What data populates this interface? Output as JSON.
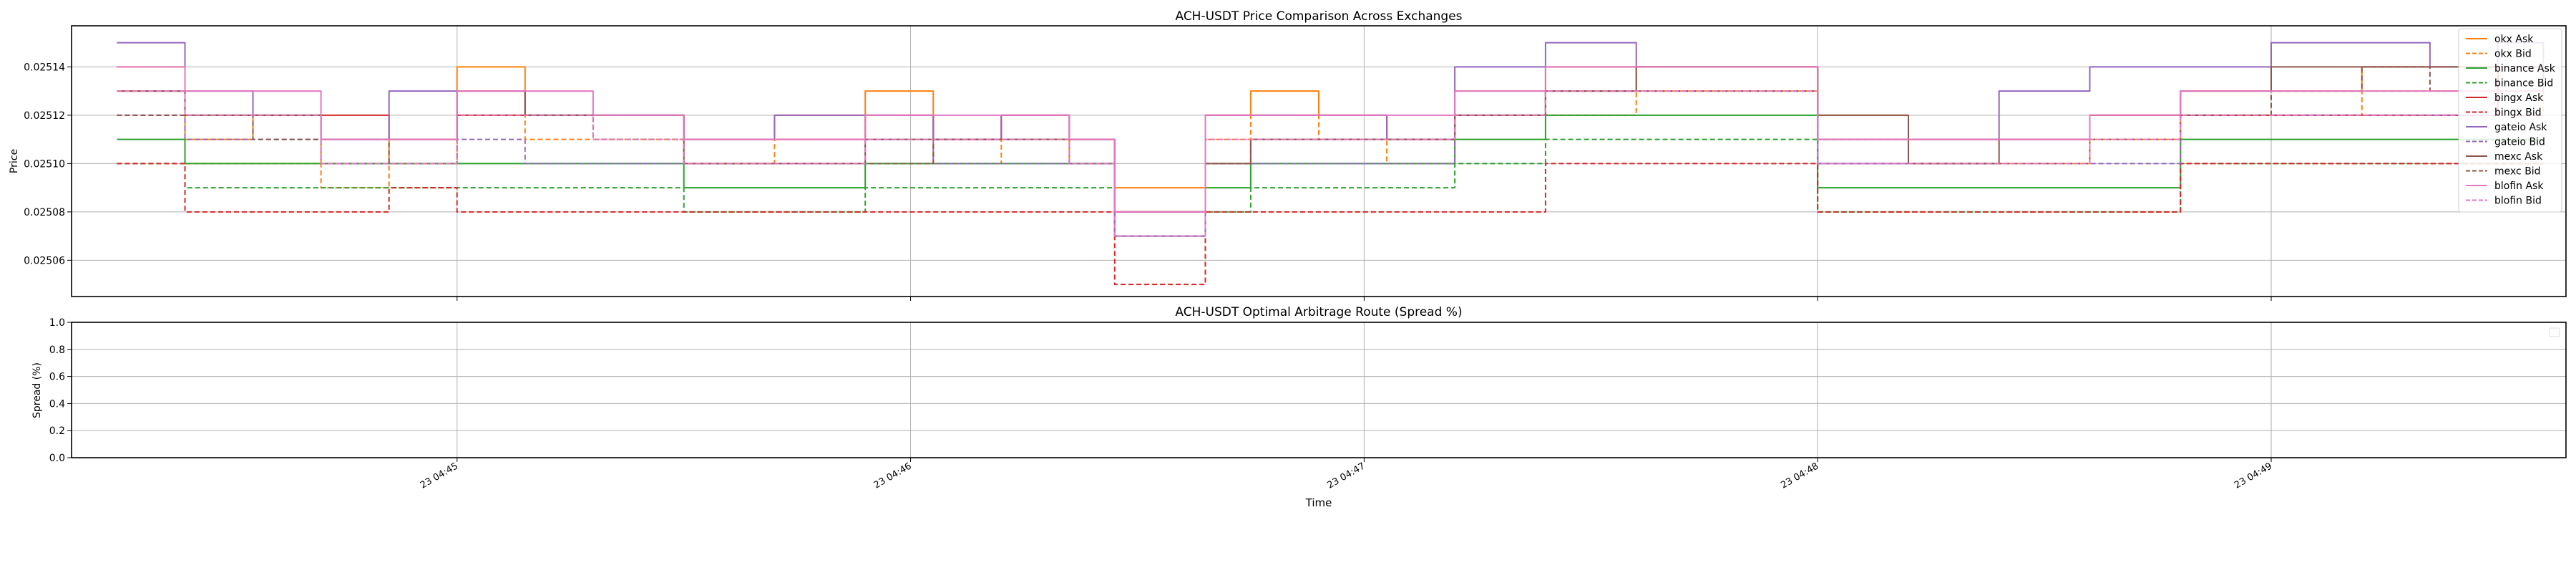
{
  "chart_data": [
    {
      "type": "line",
      "title": "ACH-USDT Price Comparison Across Exchanges",
      "xlabel": "",
      "ylabel": "Price",
      "ylim": [
        0.025045,
        0.025157
      ],
      "yticks": [
        "0.02506",
        "0.02508",
        "0.02510",
        "0.02512",
        "0.02514"
      ],
      "ytick_values": [
        0.02506,
        0.02508,
        0.0251,
        0.02512,
        0.02514
      ],
      "x_range_minutes": [
        44.15,
        49.65
      ],
      "x_time_prefix": "23 04:",
      "grid": true,
      "legend_position": "right",
      "series": [
        {
          "name": "okx Ask",
          "color": "#ff7f0e",
          "dash": false,
          "x": [
            44.25,
            44.4,
            44.55,
            44.7,
            44.85,
            45.0,
            45.15,
            45.3,
            45.5,
            45.7,
            45.9,
            46.05,
            46.2,
            46.35,
            46.45,
            46.55,
            46.65,
            46.75,
            46.9,
            47.05,
            47.2,
            47.4,
            47.6,
            47.8,
            48.0,
            48.2,
            48.4,
            48.6,
            48.8,
            49.0,
            49.2,
            49.35,
            49.5,
            49.6
          ],
          "values": [
            0.02514,
            0.02511,
            0.02512,
            0.0251,
            0.02511,
            0.02514,
            0.02512,
            0.02512,
            0.02511,
            0.02512,
            0.02513,
            0.02511,
            0.02512,
            0.02511,
            0.02509,
            0.02509,
            0.02512,
            0.02513,
            0.02512,
            0.02511,
            0.02513,
            0.02513,
            0.02514,
            0.02514,
            0.02512,
            0.02511,
            0.02511,
            0.02512,
            0.02513,
            0.02513,
            0.02514,
            0.02514,
            0.02513,
            0.02514
          ]
        },
        {
          "name": "okx Bid",
          "color": "#ff7f0e",
          "dash": true,
          "x": [
            44.25,
            44.4,
            44.55,
            44.7,
            44.85,
            45.0,
            45.15,
            45.3,
            45.5,
            45.7,
            45.9,
            46.05,
            46.2,
            46.35,
            46.45,
            46.55,
            46.65,
            46.75,
            46.9,
            47.05,
            47.2,
            47.4,
            47.6,
            47.8,
            48.0,
            48.2,
            48.4,
            48.6,
            48.8,
            49.0,
            49.2,
            49.35,
            49.5,
            49.6
          ],
          "values": [
            0.02513,
            0.0251,
            0.0251,
            0.02509,
            0.0251,
            0.02512,
            0.02511,
            0.02511,
            0.0251,
            0.02511,
            0.02512,
            0.0251,
            0.02511,
            0.0251,
            0.02508,
            0.02508,
            0.02511,
            0.02512,
            0.02511,
            0.0251,
            0.02512,
            0.02512,
            0.02513,
            0.02513,
            0.0251,
            0.0251,
            0.0251,
            0.02511,
            0.02512,
            0.02512,
            0.02513,
            0.02513,
            0.02512,
            0.02513
          ]
        },
        {
          "name": "binance Ask",
          "color": "#2ca02c",
          "dash": false,
          "x": [
            44.25,
            44.4,
            44.55,
            44.7,
            44.85,
            45.0,
            45.15,
            45.3,
            45.5,
            45.7,
            45.9,
            46.05,
            46.2,
            46.35,
            46.45,
            46.55,
            46.65,
            46.75,
            46.9,
            47.05,
            47.2,
            47.4,
            47.6,
            47.8,
            48.0,
            48.2,
            48.4,
            48.6,
            48.8,
            49.0,
            49.2,
            49.35,
            49.5,
            49.6
          ],
          "values": [
            0.02511,
            0.0251,
            0.0251,
            0.0251,
            0.0251,
            0.0251,
            0.0251,
            0.0251,
            0.02509,
            0.02509,
            0.0251,
            0.0251,
            0.0251,
            0.0251,
            0.02508,
            0.02508,
            0.02509,
            0.0251,
            0.0251,
            0.0251,
            0.02511,
            0.02512,
            0.02512,
            0.02512,
            0.02509,
            0.02509,
            0.02509,
            0.02509,
            0.02511,
            0.02511,
            0.02511,
            0.02511,
            0.02511,
            0.02511
          ]
        },
        {
          "name": "binance Bid",
          "color": "#2ca02c",
          "dash": true,
          "x": [
            44.25,
            44.4,
            44.55,
            44.7,
            44.85,
            45.0,
            45.15,
            45.3,
            45.5,
            45.7,
            45.9,
            46.05,
            46.2,
            46.35,
            46.45,
            46.55,
            46.65,
            46.75,
            46.9,
            47.05,
            47.2,
            47.4,
            47.6,
            47.8,
            48.0,
            48.2,
            48.4,
            48.6,
            48.8,
            49.0,
            49.2,
            49.35,
            49.5,
            49.6
          ],
          "values": [
            0.0251,
            0.02509,
            0.02509,
            0.02509,
            0.02509,
            0.02509,
            0.02509,
            0.02509,
            0.02508,
            0.02508,
            0.02509,
            0.02509,
            0.02509,
            0.02509,
            0.02507,
            0.02507,
            0.02508,
            0.02509,
            0.02509,
            0.02509,
            0.0251,
            0.02511,
            0.02511,
            0.02511,
            0.02508,
            0.02508,
            0.02508,
            0.02508,
            0.0251,
            0.0251,
            0.0251,
            0.0251,
            0.0251,
            0.0251
          ]
        },
        {
          "name": "bingx Ask",
          "color": "#d62728",
          "dash": false,
          "x": [
            44.25,
            44.4,
            44.55,
            44.7,
            44.85,
            45.0,
            45.15,
            45.3,
            45.5,
            45.7,
            45.9,
            46.05,
            46.2,
            46.35,
            46.45,
            46.55,
            46.65,
            46.75,
            46.9,
            47.05,
            47.2,
            47.4,
            47.6,
            47.8,
            48.0,
            48.2,
            48.4,
            48.6,
            48.8,
            49.0,
            49.2,
            49.35,
            49.5,
            49.6
          ],
          "values": [
            0.02513,
            0.02512,
            0.02512,
            0.02512,
            0.02511,
            0.02512,
            0.02512,
            0.02512,
            0.02511,
            0.02511,
            0.02512,
            0.02511,
            0.02512,
            0.02511,
            0.02508,
            0.02508,
            0.02512,
            0.02512,
            0.02512,
            0.02511,
            0.02512,
            0.02514,
            0.02514,
            0.02514,
            0.02511,
            0.02511,
            0.02511,
            0.02512,
            0.02512,
            0.02512,
            0.02512,
            0.02512,
            0.02514,
            0.02514
          ]
        },
        {
          "name": "bingx Bid",
          "color": "#d62728",
          "dash": true,
          "x": [
            44.25,
            44.4,
            44.55,
            44.7,
            44.85,
            45.0,
            45.15,
            45.3,
            45.5,
            45.7,
            45.9,
            46.05,
            46.2,
            46.35,
            46.45,
            46.55,
            46.65,
            46.75,
            46.9,
            47.05,
            47.2,
            47.4,
            47.6,
            47.8,
            48.0,
            48.2,
            48.4,
            48.6,
            48.8,
            49.0,
            49.2,
            49.35,
            49.5,
            49.6
          ],
          "values": [
            0.0251,
            0.02508,
            0.02508,
            0.02508,
            0.02509,
            0.02508,
            0.02508,
            0.02508,
            0.02508,
            0.02508,
            0.02508,
            0.02508,
            0.02508,
            0.02508,
            0.02505,
            0.02505,
            0.02508,
            0.02508,
            0.02508,
            0.02508,
            0.02508,
            0.0251,
            0.0251,
            0.0251,
            0.02508,
            0.02508,
            0.02508,
            0.02508,
            0.0251,
            0.0251,
            0.0251,
            0.0251,
            0.0251,
            0.0251
          ]
        },
        {
          "name": "gateio Ask",
          "color": "#9467bd",
          "dash": false,
          "x": [
            44.25,
            44.4,
            44.55,
            44.7,
            44.85,
            45.0,
            45.15,
            45.3,
            45.5,
            45.7,
            45.9,
            46.05,
            46.2,
            46.35,
            46.45,
            46.55,
            46.65,
            46.75,
            46.9,
            47.05,
            47.2,
            47.4,
            47.6,
            47.8,
            48.0,
            48.2,
            48.4,
            48.6,
            48.8,
            49.0,
            49.2,
            49.35,
            49.5,
            49.6
          ],
          "values": [
            0.02515,
            0.02513,
            0.02512,
            0.02511,
            0.02513,
            0.02513,
            0.02512,
            0.02512,
            0.02511,
            0.02512,
            0.02512,
            0.02511,
            0.02512,
            0.02511,
            0.02507,
            0.02507,
            0.02512,
            0.02512,
            0.02512,
            0.02511,
            0.02514,
            0.02515,
            0.02514,
            0.02514,
            0.0251,
            0.02511,
            0.02513,
            0.02514,
            0.02514,
            0.02515,
            0.02515,
            0.02514,
            0.02515,
            0.02513
          ]
        },
        {
          "name": "gateio Bid",
          "color": "#9467bd",
          "dash": true,
          "x": [
            44.25,
            44.4,
            44.55,
            44.7,
            44.85,
            45.0,
            45.15,
            45.3,
            45.5,
            45.7,
            45.9,
            46.05,
            46.2,
            46.35,
            46.45,
            46.55,
            46.65,
            46.75,
            46.9,
            47.05,
            47.2,
            47.4,
            47.6,
            47.8,
            48.0,
            48.2,
            48.4,
            48.6,
            48.8,
            49.0,
            49.2,
            49.35,
            49.5,
            49.6
          ],
          "values": [
            0.02512,
            0.02511,
            0.02511,
            0.0251,
            0.0251,
            0.02511,
            0.0251,
            0.0251,
            0.0251,
            0.0251,
            0.02511,
            0.0251,
            0.0251,
            0.0251,
            0.02507,
            0.02507,
            0.0251,
            0.0251,
            0.0251,
            0.0251,
            0.02512,
            0.02513,
            0.02513,
            0.02513,
            0.0251,
            0.0251,
            0.0251,
            0.0251,
            0.02512,
            0.02512,
            0.02512,
            0.02512,
            0.02512,
            0.02512
          ]
        },
        {
          "name": "mexc Ask",
          "color": "#8c564b",
          "dash": false,
          "x": [
            44.25,
            44.4,
            44.55,
            44.7,
            44.85,
            45.0,
            45.15,
            45.3,
            45.5,
            45.7,
            45.9,
            46.05,
            46.2,
            46.35,
            46.45,
            46.55,
            46.65,
            46.75,
            46.9,
            47.05,
            47.2,
            47.4,
            47.6,
            47.8,
            48.0,
            48.2,
            48.4,
            48.6,
            48.8,
            49.0,
            49.2,
            49.35,
            49.5,
            49.6
          ],
          "values": [
            0.02513,
            0.02512,
            0.02512,
            0.02511,
            0.02511,
            0.02513,
            0.02512,
            0.02512,
            0.0251,
            0.0251,
            0.02511,
            0.02511,
            0.02511,
            0.02511,
            0.02508,
            0.02508,
            0.0251,
            0.02511,
            0.02511,
            0.02511,
            0.02512,
            0.02513,
            0.02514,
            0.02514,
            0.02512,
            0.0251,
            0.02511,
            0.02512,
            0.02513,
            0.02514,
            0.02514,
            0.02514,
            0.02514,
            0.02514
          ]
        },
        {
          "name": "mexc Bid",
          "color": "#8c564b",
          "dash": true,
          "x": [
            44.25,
            44.4,
            44.55,
            44.7,
            44.85,
            45.0,
            45.15,
            45.3,
            45.5,
            45.7,
            45.9,
            46.05,
            46.2,
            46.35,
            46.45,
            46.55,
            46.65,
            46.75,
            46.9,
            47.05,
            47.2,
            47.4,
            47.6,
            47.8,
            48.0,
            48.2,
            48.4,
            48.6,
            48.8,
            49.0,
            49.2,
            49.35,
            49.5,
            49.6
          ],
          "values": [
            0.02512,
            0.02512,
            0.02511,
            0.02511,
            0.0251,
            0.02512,
            0.02512,
            0.02511,
            0.0251,
            0.0251,
            0.0251,
            0.02511,
            0.02511,
            0.0251,
            0.02508,
            0.02508,
            0.0251,
            0.02511,
            0.02511,
            0.02511,
            0.02512,
            0.02513,
            0.02513,
            0.02513,
            0.02511,
            0.0251,
            0.0251,
            0.02511,
            0.02512,
            0.02513,
            0.02514,
            0.02513,
            0.02513,
            0.02513
          ]
        },
        {
          "name": "blofin Ask",
          "color": "#e377c2",
          "dash": false,
          "x": [
            44.25,
            44.4,
            44.55,
            44.7,
            44.85,
            45.0,
            45.15,
            45.3,
            45.5,
            45.7,
            45.9,
            46.05,
            46.2,
            46.35,
            46.45,
            46.55,
            46.65,
            46.75,
            46.9,
            47.05,
            47.2,
            47.4,
            47.6,
            47.8,
            48.0,
            48.2,
            48.4,
            48.6,
            48.8,
            49.0,
            49.2,
            49.35,
            49.5,
            49.6
          ],
          "values": [
            0.02514,
            0.02513,
            0.02513,
            0.02511,
            0.02511,
            0.02513,
            0.02513,
            0.02512,
            0.02511,
            0.02511,
            0.02512,
            0.02512,
            0.02512,
            0.02511,
            0.02508,
            0.02508,
            0.02512,
            0.02512,
            0.02512,
            0.02512,
            0.02513,
            0.02514,
            0.02514,
            0.02514,
            0.02511,
            0.02511,
            0.02511,
            0.02512,
            0.02513,
            0.02513,
            0.02513,
            0.02513,
            0.02513,
            0.02513
          ]
        },
        {
          "name": "blofin Bid",
          "color": "#e377c2",
          "dash": true,
          "x": [
            44.25,
            44.4,
            44.55,
            44.7,
            44.85,
            45.0,
            45.15,
            45.3,
            45.5,
            45.7,
            45.9,
            46.05,
            46.2,
            46.35,
            46.45,
            46.55,
            46.65,
            46.75,
            46.9,
            47.05,
            47.2,
            47.4,
            47.6,
            47.8,
            48.0,
            48.2,
            48.4,
            48.6,
            48.8,
            49.0,
            49.2,
            49.35,
            49.5,
            49.6
          ],
          "values": [
            0.02513,
            0.02512,
            0.02512,
            0.0251,
            0.0251,
            0.02512,
            0.02512,
            0.02511,
            0.0251,
            0.0251,
            0.02511,
            0.02511,
            0.02511,
            0.0251,
            0.02507,
            0.02507,
            0.02511,
            0.02511,
            0.02511,
            0.02511,
            0.02512,
            0.02513,
            0.02513,
            0.02513,
            0.0251,
            0.0251,
            0.0251,
            0.02511,
            0.02512,
            0.02512,
            0.02512,
            0.02512,
            0.02512,
            0.02512
          ]
        }
      ]
    },
    {
      "type": "line",
      "title": "ACH-USDT Optimal Arbitrage Route (Spread %)",
      "xlabel": "Time",
      "ylabel": "Spread (%)",
      "ylim": [
        0.0,
        1.0
      ],
      "yticks": [
        "0.0",
        "0.2",
        "0.4",
        "0.6",
        "0.8",
        "1.0"
      ],
      "ytick_values": [
        0.0,
        0.2,
        0.4,
        0.6,
        0.8,
        1.0
      ],
      "xticks": [
        "23 04:45",
        "23 04:46",
        "23 04:47",
        "23 04:48",
        "23 04:49"
      ],
      "xtick_values": [
        45,
        46,
        47,
        48,
        49
      ],
      "x_range_minutes": [
        44.15,
        49.65
      ],
      "grid": true,
      "series": []
    }
  ]
}
